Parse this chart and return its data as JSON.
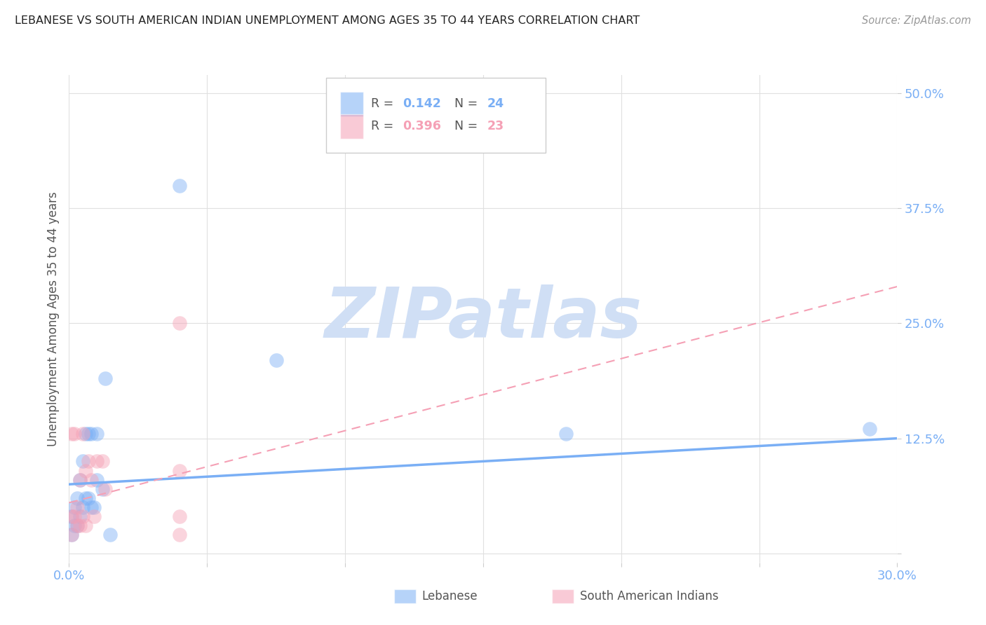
{
  "title": "LEBANESE VS SOUTH AMERICAN INDIAN UNEMPLOYMENT AMONG AGES 35 TO 44 YEARS CORRELATION CHART",
  "source": "Source: ZipAtlas.com",
  "ylabel": "Unemployment Among Ages 35 to 44 years",
  "xlim": [
    0.0,
    0.3
  ],
  "ylim": [
    -0.01,
    0.52
  ],
  "yticks": [
    0.0,
    0.125,
    0.25,
    0.375,
    0.5
  ],
  "ytick_labels": [
    "",
    "12.5%",
    "25.0%",
    "37.5%",
    "50.0%"
  ],
  "xticks": [
    0.0,
    0.05,
    0.1,
    0.15,
    0.2,
    0.25,
    0.3
  ],
  "xtick_labels": [
    "0.0%",
    "",
    "",
    "",
    "",
    "",
    "30.0%"
  ],
  "blue_color": "#7aaff5",
  "pink_color": "#f5a0b5",
  "title_color": "#222222",
  "axis_label_color": "#555555",
  "tick_label_color": "#7aaff5",
  "grid_color": "#e0e0e0",
  "background_color": "#ffffff",
  "watermark_color": "#d0dff5",
  "lebanese_x": [
    0.001,
    0.001,
    0.002,
    0.002,
    0.003,
    0.003,
    0.004,
    0.004,
    0.005,
    0.005,
    0.006,
    0.006,
    0.007,
    0.007,
    0.008,
    0.008,
    0.009,
    0.01,
    0.01,
    0.012,
    0.013,
    0.015,
    0.04,
    0.075,
    0.18,
    0.29
  ],
  "lebanese_y": [
    0.02,
    0.04,
    0.03,
    0.05,
    0.03,
    0.06,
    0.04,
    0.08,
    0.05,
    0.1,
    0.06,
    0.13,
    0.06,
    0.13,
    0.05,
    0.13,
    0.05,
    0.13,
    0.08,
    0.07,
    0.19,
    0.02,
    0.4,
    0.21,
    0.13,
    0.135
  ],
  "sa_indian_x": [
    0.001,
    0.001,
    0.001,
    0.002,
    0.002,
    0.003,
    0.003,
    0.004,
    0.004,
    0.005,
    0.005,
    0.006,
    0.006,
    0.007,
    0.008,
    0.009,
    0.01,
    0.012,
    0.013,
    0.04,
    0.04,
    0.04,
    0.04
  ],
  "sa_indian_y": [
    0.02,
    0.04,
    0.13,
    0.04,
    0.13,
    0.03,
    0.05,
    0.03,
    0.08,
    0.04,
    0.13,
    0.03,
    0.09,
    0.1,
    0.08,
    0.04,
    0.1,
    0.1,
    0.07,
    0.25,
    0.09,
    0.04,
    0.02
  ],
  "leb_trend_x": [
    0.0,
    0.3
  ],
  "leb_trend_y": [
    0.075,
    0.125
  ],
  "sa_trend_x": [
    0.0,
    0.3
  ],
  "sa_trend_y": [
    0.055,
    0.29
  ]
}
